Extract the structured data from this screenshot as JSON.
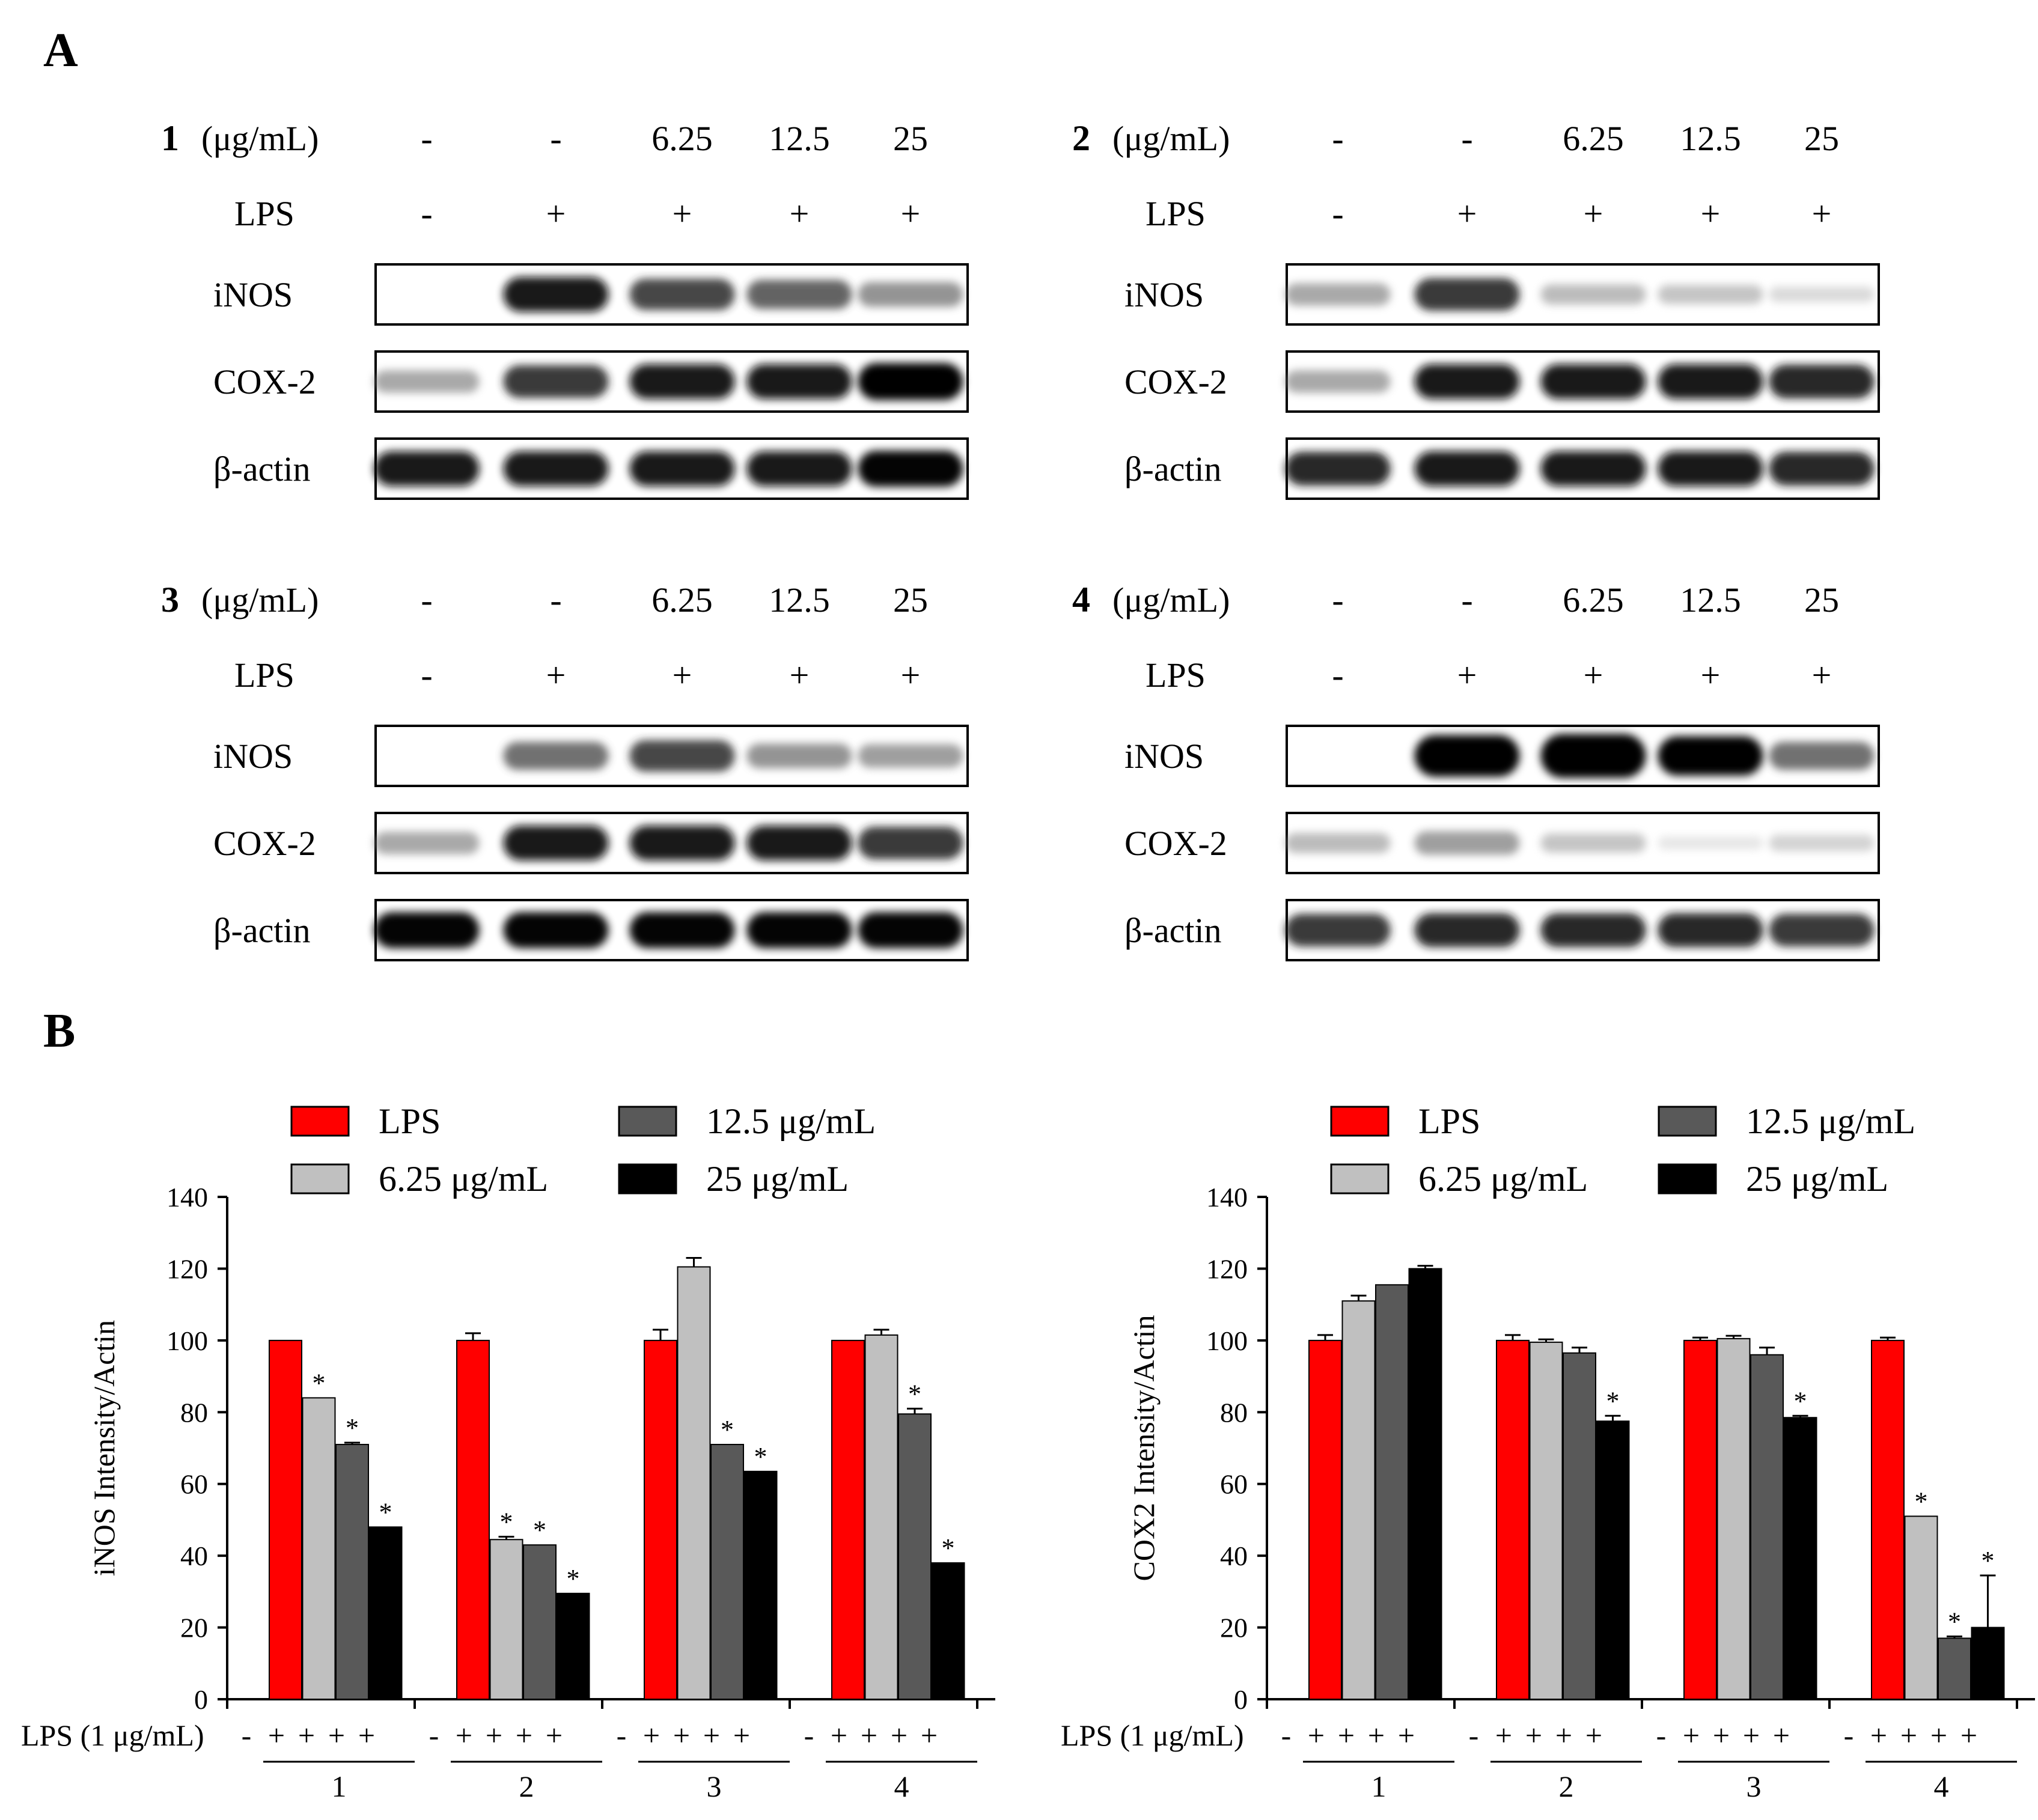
{
  "panels": [
    {
      "letter": "A",
      "blots": [
        {
          "compound": "1",
          "unit": "(μg/mL)",
          "conc_labels": [
            "-",
            "-",
            "6.25",
            "12.5",
            "25"
          ],
          "lps_label": "LPS",
          "lps_signs": [
            "-",
            "+",
            "+",
            "+",
            "+"
          ],
          "rows": [
            {
              "protein": "iNOS",
              "intensity": [
                0.0,
                1.0,
                0.85,
                0.75,
                0.55
              ]
            },
            {
              "protein": "COX-2",
              "intensity": [
                0.45,
                0.9,
                1.0,
                1.0,
                1.1
              ]
            },
            {
              "protein": "β-actin",
              "intensity": [
                1.0,
                1.0,
                1.0,
                1.0,
                1.05
              ]
            }
          ]
        },
        {
          "compound": "2",
          "unit": "(μg/mL)",
          "conc_labels": [
            "-",
            "-",
            "6.25",
            "12.5",
            "25"
          ],
          "lps_label": "LPS",
          "lps_signs": [
            "-",
            "+",
            "+",
            "+",
            "+"
          ],
          "rows": [
            {
              "protein": "iNOS",
              "intensity": [
                0.45,
                0.9,
                0.35,
                0.3,
                0.15
              ]
            },
            {
              "protein": "COX-2",
              "intensity": [
                0.45,
                1.0,
                1.0,
                1.0,
                0.95
              ]
            },
            {
              "protein": "β-actin",
              "intensity": [
                0.95,
                1.0,
                1.0,
                1.0,
                0.95
              ]
            }
          ]
        },
        {
          "compound": "3",
          "unit": "(μg/mL)",
          "conc_labels": [
            "-",
            "-",
            "6.25",
            "12.5",
            "25"
          ],
          "lps_label": "LPS",
          "lps_signs": [
            "-",
            "+",
            "+",
            "+",
            "+"
          ],
          "rows": [
            {
              "protein": "iNOS",
              "intensity": [
                0.0,
                0.7,
                0.85,
                0.55,
                0.5
              ]
            },
            {
              "protein": "COX-2",
              "intensity": [
                0.45,
                1.0,
                1.0,
                1.0,
                0.9
              ]
            },
            {
              "protein": "β-actin",
              "intensity": [
                1.05,
                1.05,
                1.05,
                1.05,
                1.05
              ]
            }
          ]
        },
        {
          "compound": "4",
          "unit": "(μg/mL)",
          "conc_labels": [
            "-",
            "-",
            "6.25",
            "12.5",
            "25"
          ],
          "lps_label": "LPS",
          "lps_signs": [
            "-",
            "+",
            "+",
            "+",
            "+"
          ],
          "rows": [
            {
              "protein": "iNOS",
              "intensity": [
                0.0,
                1.3,
                1.4,
                1.2,
                0.7
              ]
            },
            {
              "protein": "COX-2",
              "intensity": [
                0.35,
                0.5,
                0.3,
                0.05,
                0.2
              ]
            },
            {
              "protein": "β-actin",
              "intensity": [
                0.9,
                0.95,
                0.95,
                0.95,
                0.9
              ]
            }
          ]
        }
      ]
    },
    {
      "letter": "B"
    }
  ],
  "colors": {
    "LPS": "#ff0000",
    "6.25 μg/mL": "#c0c0c0",
    "12.5 μg/mL": "#595959",
    "25 μg/mL": "#000000"
  },
  "chart_data": [
    {
      "type": "bar",
      "ylabel": "iNOS Intensity/Actin",
      "ylim": [
        0,
        140
      ],
      "yticks": [
        0,
        20,
        40,
        60,
        80,
        100,
        120,
        140
      ],
      "groups": [
        "1",
        "2",
        "3",
        "4"
      ],
      "lps_axis_label": "LPS (1 μg/mL)",
      "lps_signs": [
        "-",
        "+",
        "+",
        "+",
        "+"
      ],
      "legend": [
        "LPS",
        "6.25 μg/mL",
        "12.5 μg/mL",
        "25 μg/mL"
      ],
      "legend_position": "top",
      "series": [
        {
          "name": "LPS",
          "values": [
            100,
            100,
            100,
            100
          ],
          "errors": [
            0,
            2,
            3,
            0
          ],
          "sig": [
            false,
            false,
            false,
            false
          ]
        },
        {
          "name": "6.25 μg/mL",
          "values": [
            84,
            44.5,
            120.5,
            101.5
          ],
          "errors": [
            0,
            0.8,
            2.5,
            1.5
          ],
          "sig": [
            true,
            true,
            false,
            false
          ]
        },
        {
          "name": "12.5 μg/mL",
          "values": [
            71,
            43,
            71,
            79.5
          ],
          "errors": [
            0.5,
            0,
            0,
            1.5
          ],
          "sig": [
            true,
            true,
            true,
            true
          ]
        },
        {
          "name": "25 μg/mL",
          "values": [
            48,
            29.5,
            63.5,
            38
          ],
          "errors": [
            0,
            0,
            0,
            0
          ],
          "sig": [
            true,
            true,
            true,
            true
          ]
        }
      ],
      "sig_mark": "*"
    },
    {
      "type": "bar",
      "ylabel": "COX2 Intensity/Actin",
      "ylim": [
        0,
        140
      ],
      "yticks": [
        0,
        20,
        40,
        60,
        80,
        100,
        120,
        140
      ],
      "groups": [
        "1",
        "2",
        "3",
        "4"
      ],
      "lps_axis_label": "LPS (1 μg/mL)",
      "lps_signs": [
        "-",
        "+",
        "+",
        "+",
        "+"
      ],
      "legend": [
        "LPS",
        "6.25 μg/mL",
        "12.5 μg/mL",
        "25 μg/mL"
      ],
      "legend_position": "top",
      "series": [
        {
          "name": "LPS",
          "values": [
            100,
            100,
            100,
            100
          ],
          "errors": [
            1.5,
            1.5,
            0.8,
            0.8
          ],
          "sig": [
            false,
            false,
            false,
            false
          ]
        },
        {
          "name": "6.25 μg/mL",
          "values": [
            111,
            99.5,
            100.5,
            51
          ],
          "errors": [
            1.5,
            0.8,
            0.8,
            0
          ],
          "sig": [
            false,
            false,
            false,
            true
          ]
        },
        {
          "name": "12.5 μg/mL",
          "values": [
            115.5,
            96.5,
            96,
            17
          ],
          "errors": [
            0,
            1.5,
            2,
            0.5
          ],
          "sig": [
            false,
            false,
            false,
            true
          ]
        },
        {
          "name": "25 μg/mL",
          "values": [
            120,
            77.5,
            78.5,
            20
          ],
          "errors": [
            0.8,
            1.5,
            0.5,
            14.5
          ],
          "sig": [
            false,
            true,
            true,
            true
          ]
        }
      ],
      "sig_mark": "*"
    }
  ]
}
